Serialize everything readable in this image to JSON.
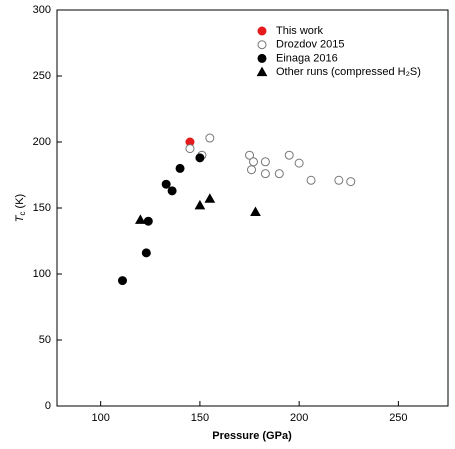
{
  "chart_data": {
    "type": "scatter",
    "xlabel": "Pressure (GPa)",
    "ylabel": [
      "T",
      "c",
      "(K)"
    ],
    "xlim": [
      78,
      275
    ],
    "xticks": [
      100,
      150,
      200,
      250
    ],
    "ylim": [
      0,
      300
    ],
    "yticks": [
      0,
      50,
      100,
      150,
      200,
      250,
      300
    ],
    "series": [
      {
        "name": "This work",
        "color": "#e41a1c",
        "marker": "circle",
        "filled": true,
        "x": [
          145
        ],
        "values": [
          200
        ]
      },
      {
        "name": "Drozdov 2015",
        "color": "#777777",
        "marker": "circle",
        "filled": false,
        "x": [
          145,
          151,
          155,
          175,
          176,
          177,
          183,
          183,
          190,
          195,
          200,
          206,
          220,
          226
        ],
        "values": [
          195,
          190,
          203,
          190,
          179,
          185,
          185,
          176,
          176,
          190,
          184,
          171,
          171,
          170
        ]
      },
      {
        "name": "Einaga 2016",
        "color": "#000000",
        "marker": "circle",
        "filled": true,
        "x": [
          111,
          123,
          124,
          133,
          136,
          140,
          150
        ],
        "values": [
          95,
          116,
          140,
          168,
          163,
          180,
          188
        ]
      },
      {
        "name": "Other runs (compressed H₂S)",
        "color": "#000000",
        "marker": "triangle",
        "filled": true,
        "x": [
          120,
          150,
          155,
          178
        ],
        "values": [
          141,
          152,
          157,
          147
        ]
      }
    ]
  }
}
